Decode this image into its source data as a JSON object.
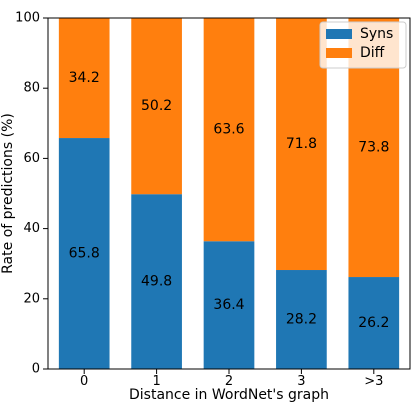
{
  "chart_data": {
    "type": "bar",
    "stacked": true,
    "categories": [
      "0",
      "1",
      "2",
      "3",
      ">3"
    ],
    "series": [
      {
        "name": "Syns",
        "values": [
          65.8,
          49.8,
          36.4,
          28.2,
          26.2
        ],
        "color": "#1f77b4"
      },
      {
        "name": "Diff",
        "values": [
          34.2,
          50.2,
          63.6,
          71.8,
          73.8
        ],
        "color": "#ff7f0e"
      }
    ],
    "data_labels": [
      [
        "65.8",
        "49.8",
        "36.4",
        "28.2",
        "26.2"
      ],
      [
        "34.2",
        "50.2",
        "63.6",
        "71.8",
        "73.8"
      ]
    ],
    "xlabel": "Distance in WordNet's graph",
    "ylabel": "Rate of predictions (%)",
    "ylim": [
      0,
      100
    ],
    "yticks": [
      0,
      20,
      40,
      60,
      80,
      100
    ],
    "grid": false,
    "legend_position": "top-right"
  }
}
